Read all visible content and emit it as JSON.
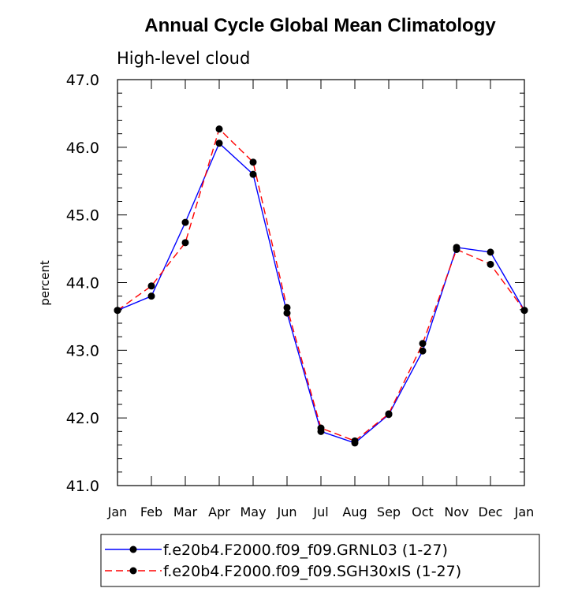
{
  "chart_data": {
    "type": "line",
    "title": "Annual Cycle Global Mean Climatology",
    "subtitle": "High-level cloud",
    "xlabel": "",
    "ylabel": "percent",
    "categories": [
      "Jan",
      "Feb",
      "Mar",
      "Apr",
      "May",
      "Jun",
      "Jul",
      "Aug",
      "Sep",
      "Oct",
      "Nov",
      "Dec",
      "Jan"
    ],
    "ylim": [
      41.0,
      47.0
    ],
    "yticks": [
      "41.0",
      "42.0",
      "43.0",
      "44.0",
      "45.0",
      "46.0",
      "47.0"
    ],
    "series": [
      {
        "name": "f.e20b4.F2000.f09_f09.GRNL03 (1-27)",
        "color": "#0000ff",
        "style": "solid",
        "values": [
          43.59,
          43.8,
          44.89,
          46.06,
          45.6,
          43.55,
          41.8,
          41.63,
          42.05,
          42.99,
          44.52,
          44.45,
          43.59
        ]
      },
      {
        "name": "f.e20b4.F2000.f09_f09.SGH30xIS (1-27)",
        "color": "#ff0000",
        "style": "dashed",
        "values": [
          43.59,
          43.95,
          44.59,
          46.27,
          45.78,
          43.63,
          41.85,
          41.66,
          42.06,
          43.1,
          44.49,
          44.27,
          43.59
        ]
      }
    ],
    "marker_color": "#000000",
    "legend": "bottom"
  }
}
